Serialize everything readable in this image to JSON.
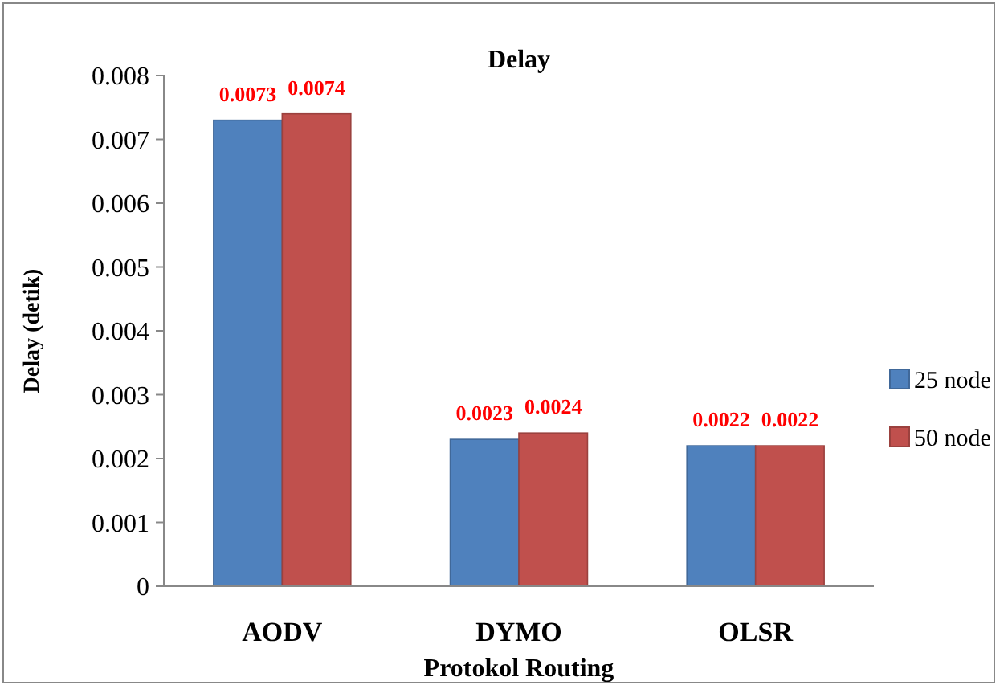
{
  "chart_data": {
    "type": "bar",
    "title": "Delay",
    "xlabel": "Protokol Routing",
    "ylabel": "Delay (detik)",
    "categories": [
      "AODV",
      "DYMO",
      "OLSR"
    ],
    "series": [
      {
        "name": "25 node",
        "color": "#4f81bd",
        "values": [
          0.0073,
          0.0023,
          0.0022
        ]
      },
      {
        "name": "50 node",
        "color": "#c0504d",
        "values": [
          0.0074,
          0.0024,
          0.0022
        ]
      }
    ],
    "ylim": [
      0,
      0.008
    ],
    "yticks": [
      0,
      0.001,
      0.002,
      0.003,
      0.004,
      0.005,
      0.006,
      0.007,
      0.008
    ],
    "data_labels": true,
    "legend": "right",
    "grid": false
  }
}
